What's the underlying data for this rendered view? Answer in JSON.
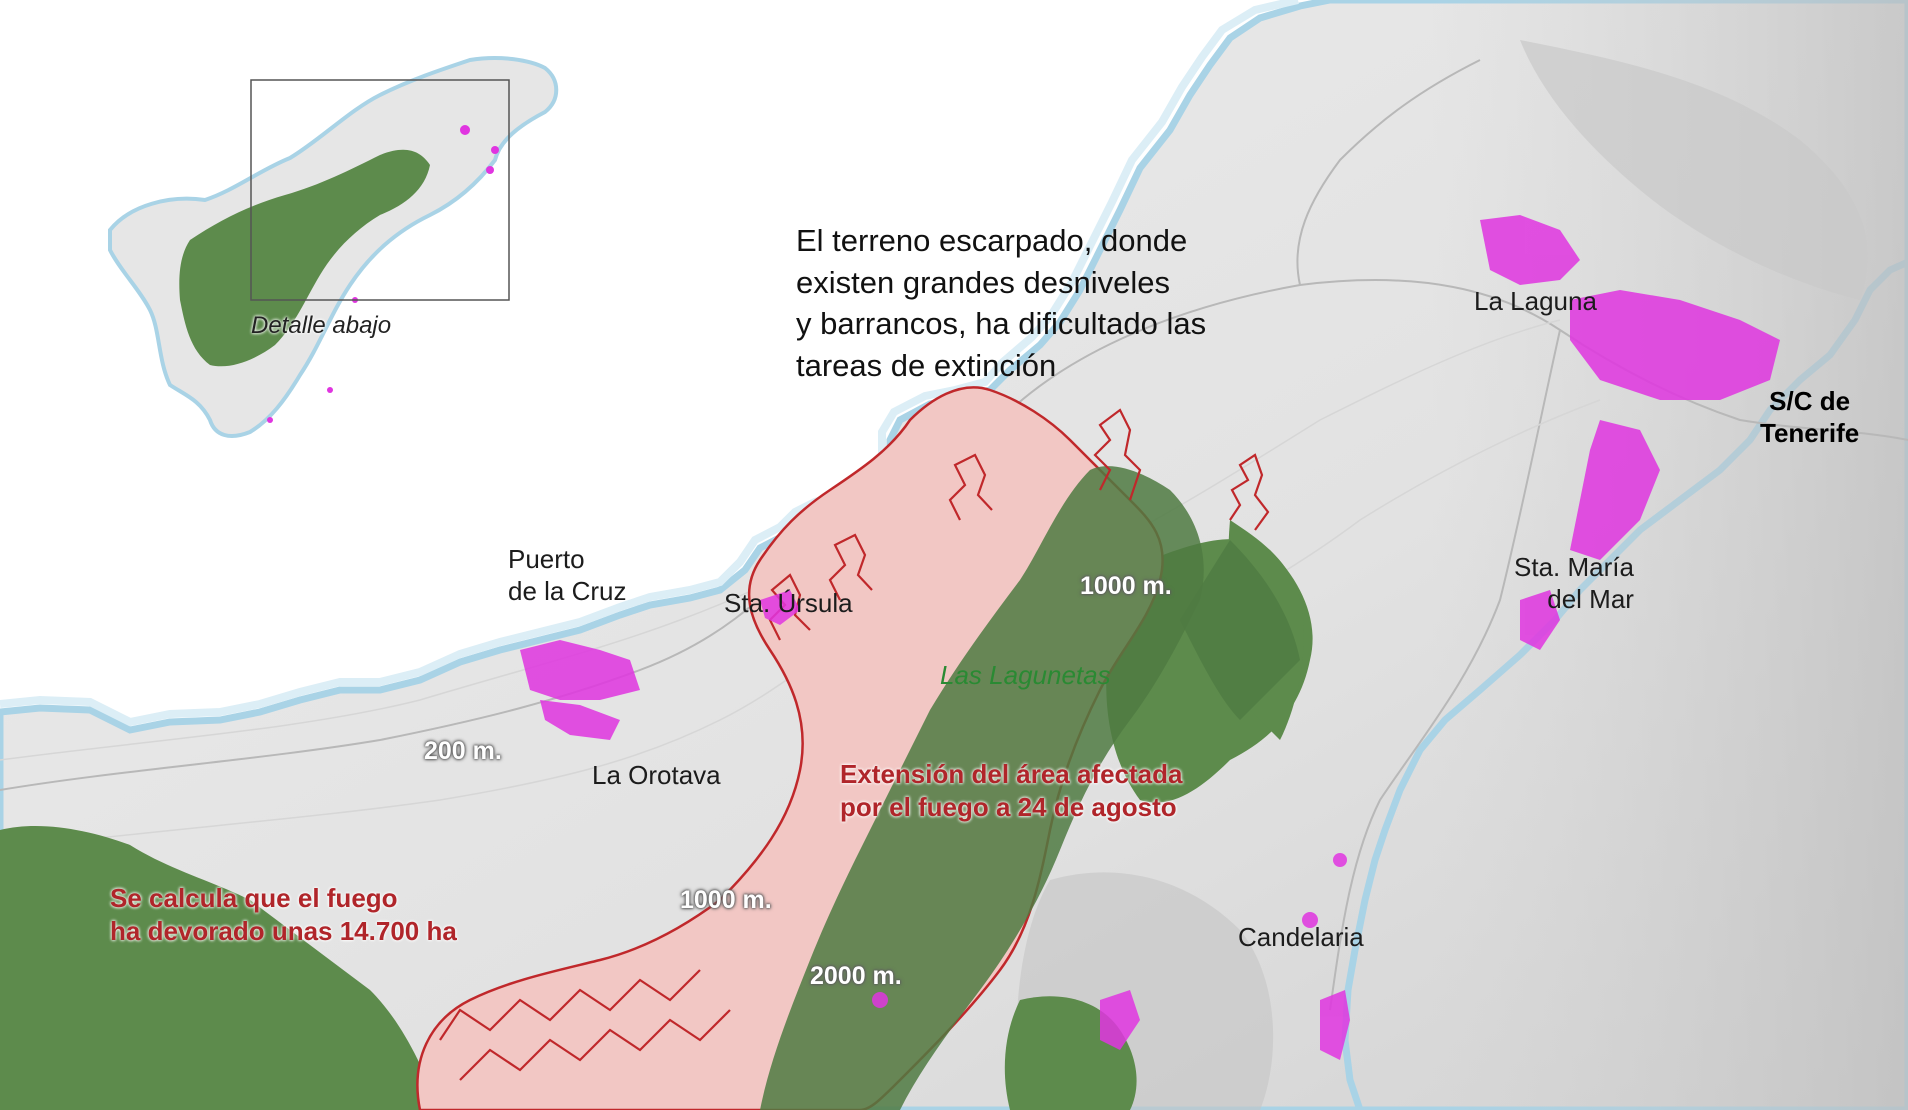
{
  "inset": {
    "caption": "Detalle abajo"
  },
  "annotation": {
    "lines": [
      "El terreno escarpado, donde",
      "existen grandes desniveles",
      "y barrancos, ha dificultado las",
      "tareas de extinción"
    ]
  },
  "places": {
    "puerto_de_la_cruz": [
      "Puerto",
      "de la Cruz"
    ],
    "sta_ursula": "Sta. Úrsula",
    "la_orotava": "La Orotava",
    "la_laguna": "La Laguna",
    "santa_cruz": [
      "S/C de",
      "Tenerife"
    ],
    "sta_maria_del_mar": [
      "Sta. María",
      "del Mar"
    ],
    "candelaria": "Candelaria",
    "las_lagunetas": "Las Lagunetas"
  },
  "altitudes": {
    "a200": "200 m.",
    "a1000_upper": "1000 m.",
    "a1000_lower": "1000 m.",
    "a2000": "2000 m."
  },
  "fire_labels": {
    "extent": [
      "Extensión del área afectada",
      "por el fuego a 24 de agosto"
    ],
    "estimate": [
      "Se calcula que el fuego",
      "ha devorado unas 14.700 ha"
    ]
  },
  "colors": {
    "sea": "#ffffff",
    "coast": "#a9d3e6",
    "land": "#e6e6e6",
    "forest": "#5a8a4a",
    "burned_fill": "#f4c9c6",
    "burned_outline": "#c0282b",
    "urban": "#e030e0"
  }
}
